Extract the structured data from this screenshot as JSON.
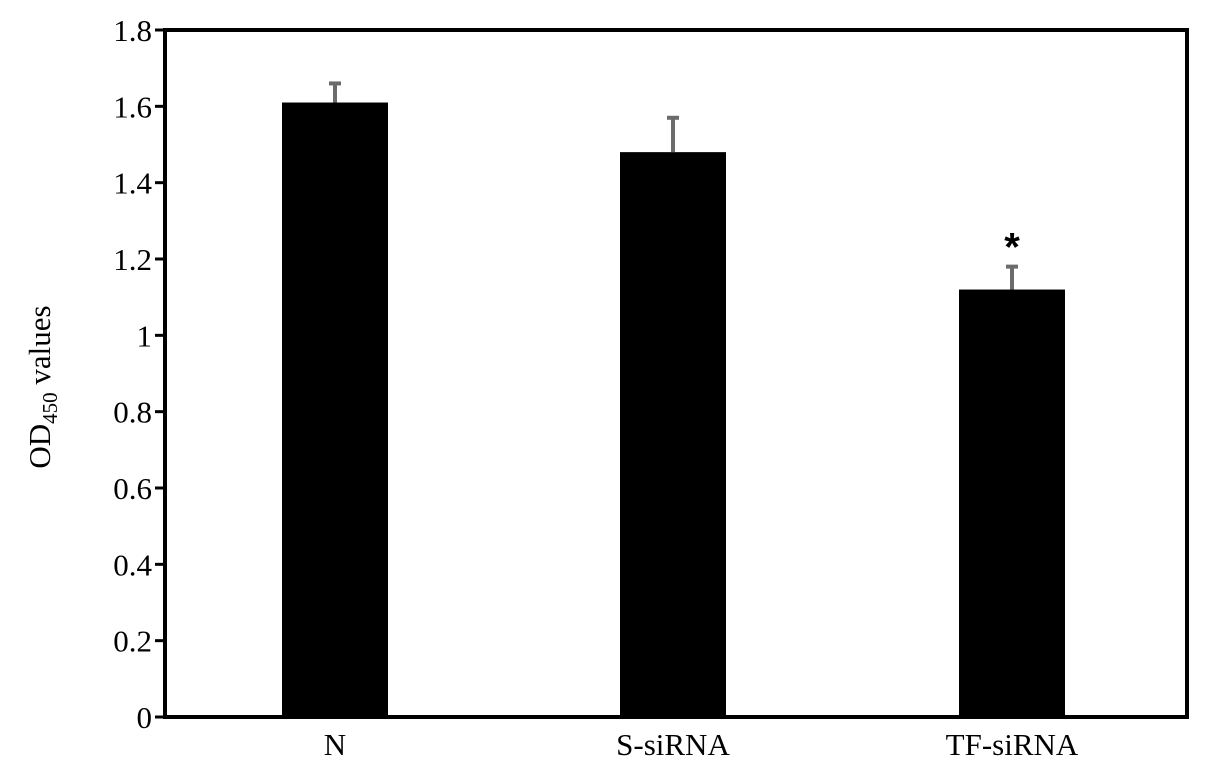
{
  "chart_data": {
    "type": "bar",
    "categories": [
      "N",
      "S-siRNA",
      "TF-siRNA"
    ],
    "series": [
      {
        "values": [
          1.61,
          1.48,
          1.12
        ],
        "errors": [
          0.05,
          0.09,
          0.06
        ],
        "annotations": [
          "",
          "",
          "*"
        ]
      }
    ],
    "ylabel": {
      "main": "OD",
      "subscript": "450",
      "suffix": " values"
    },
    "ylim": [
      0,
      1.8
    ],
    "yticks": [
      0,
      0.2,
      0.4,
      0.6,
      0.8,
      1,
      1.2,
      1.4,
      1.6,
      1.8
    ],
    "ytick_labels": [
      "0",
      "0.2",
      "0.4",
      "0.6",
      "0.8",
      "1",
      "1.2",
      "1.4",
      "1.6",
      "1.8"
    ],
    "grid": false,
    "legend": "none",
    "colors": {
      "bar": "#000000",
      "error_bar": "#6b6b6b",
      "axis": "#000000"
    }
  }
}
